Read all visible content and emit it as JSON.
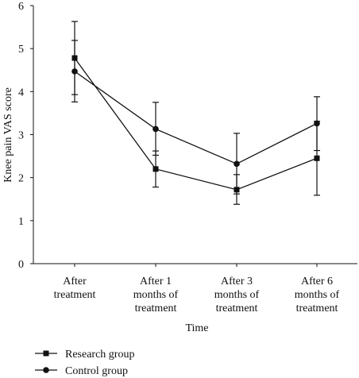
{
  "chart_data": {
    "type": "line",
    "xlabel": "Time",
    "ylabel": "Knee pain VAS score",
    "ylim": [
      0,
      6
    ],
    "yticks": [
      "0",
      "1",
      "2",
      "3",
      "4",
      "5",
      "6"
    ],
    "categories": [
      [
        "After",
        "treatment"
      ],
      [
        "After 1",
        "months of",
        "treatment"
      ],
      [
        "After 3",
        "months of",
        "treatment"
      ],
      [
        "After 6",
        "months of",
        "treatment"
      ]
    ],
    "series": [
      {
        "name": "Research group",
        "marker": "square",
        "color": "#111111",
        "values": [
          4.78,
          2.2,
          1.72,
          2.45
        ],
        "err_low": [
          3.93,
          1.78,
          1.38,
          1.59
        ],
        "err_high": [
          5.19,
          2.62,
          2.07,
          3.31
        ]
      },
      {
        "name": "Control group",
        "marker": "circle",
        "color": "#111111",
        "values": [
          4.47,
          3.13,
          2.32,
          3.26
        ],
        "err_low": [
          3.76,
          2.52,
          1.62,
          2.63
        ],
        "err_high": [
          5.63,
          3.75,
          3.03,
          3.88
        ]
      }
    ],
    "legend_position": "bottom-left",
    "grid": false
  }
}
